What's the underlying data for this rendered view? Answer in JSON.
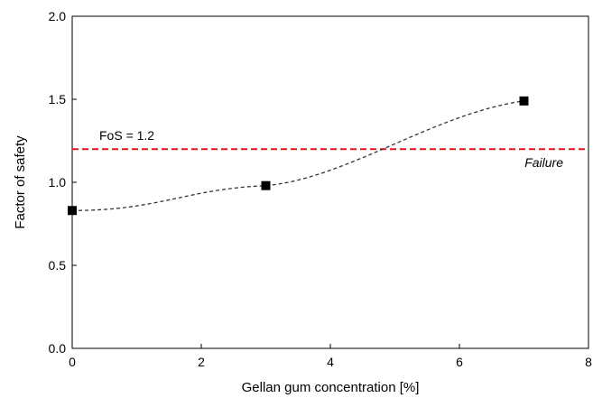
{
  "chart_data": {
    "type": "scatter",
    "title": "",
    "xlabel": "Gellan gum concentration [%]",
    "ylabel": "Factor of safety",
    "xlim": [
      0,
      8
    ],
    "ylim": [
      0,
      2
    ],
    "xticks": [
      0,
      2,
      4,
      6,
      8
    ],
    "yticks": [
      0.0,
      0.5,
      1.0,
      1.5,
      2.0
    ],
    "xtick_labels": [
      "0",
      "2",
      "4",
      "6",
      "8"
    ],
    "ytick_labels": [
      "0.0",
      "0.5",
      "1.0",
      "1.5",
      "2.0"
    ],
    "grid": false,
    "legend": "none",
    "series": [
      {
        "x": [
          0,
          3,
          7
        ],
        "y": [
          0.83,
          0.98,
          1.49
        ],
        "error": [
          0.02,
          0.02,
          0.02
        ],
        "marker": "square",
        "color": "#000000",
        "trendline": "dashed",
        "trend_color": "#333333"
      }
    ],
    "reference_line": {
      "y": 1.2,
      "label": "FoS = 1.2",
      "annotation": "Failure",
      "color": "#e8141c"
    }
  }
}
